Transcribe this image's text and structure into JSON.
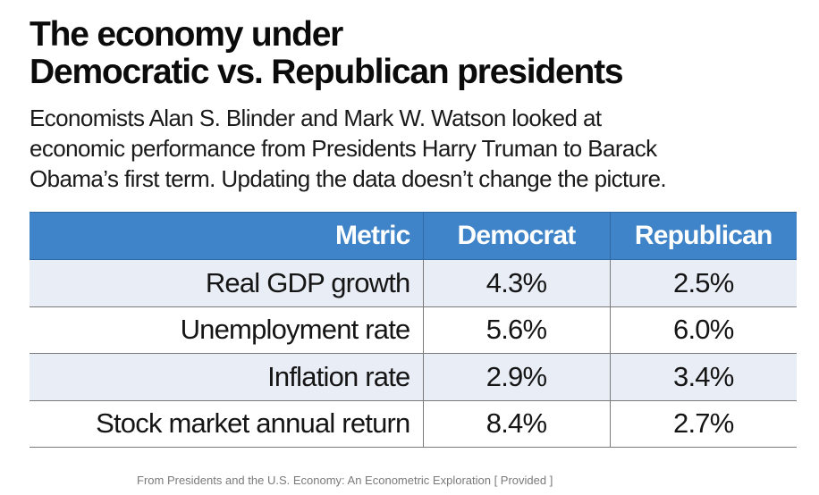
{
  "title": {
    "line1": "The economy under",
    "line2": "Democratic vs. Republican presidents"
  },
  "subtitle": {
    "line1": "Economists Alan S. Blinder and Mark W. Watson looked at",
    "line2": "economic performance from Presidents Harry Truman to Barack",
    "line3": "Obama’s first term. Updating the data doesn’t change the picture."
  },
  "colors": {
    "header_bg": "#3f84c8",
    "header_text": "#ffffff",
    "row_shade": "#e9edf5"
  },
  "chart_data": {
    "type": "table",
    "columns": [
      "Metric",
      "Democrat",
      "Republican"
    ],
    "rows": [
      {
        "metric": "Real GDP growth",
        "democrat": "4.3%",
        "republican": "2.5%"
      },
      {
        "metric": "Unemployment rate",
        "democrat": "5.6%",
        "republican": "6.0%"
      },
      {
        "metric": "Inflation rate",
        "democrat": "2.9%",
        "republican": "3.4%"
      },
      {
        "metric": "Stock market annual return",
        "democrat": "8.4%",
        "republican": "2.7%"
      }
    ]
  },
  "source": "From Presidents and the U.S. Economy: An Econometric Exploration [ Provided ]"
}
